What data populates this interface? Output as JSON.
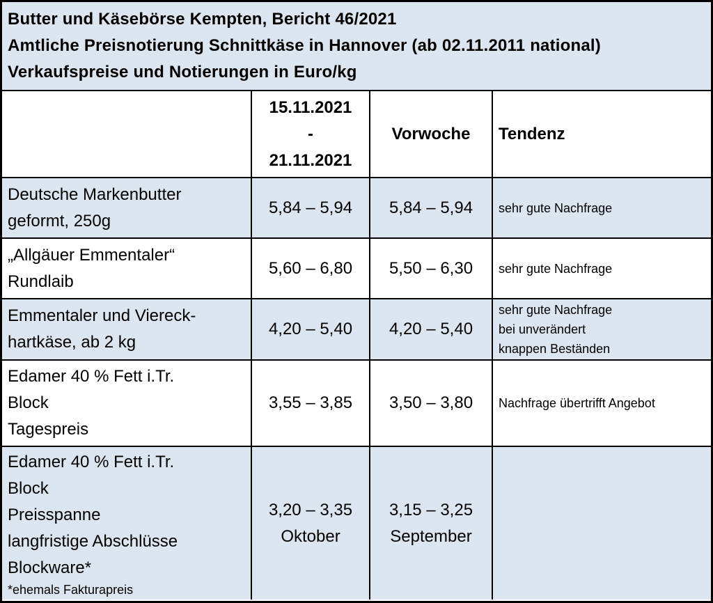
{
  "header": {
    "lines": [
      "Butter und Käsebörse Kempten, Bericht 46/2021",
      "Amtliche Preisnotierung Schnittkäse in Hannover (ab 02.11.2011 national)",
      "Verkaufspreise und Notierungen in Euro/kg"
    ]
  },
  "table": {
    "head": {
      "period": [
        "15.11.2021",
        "-",
        "21.11.2021"
      ],
      "previous": "Vorwoche",
      "trend": "Tendenz"
    },
    "rows": [
      {
        "product": [
          "Deutsche Markenbutter",
          "geformt, 250g"
        ],
        "current": [
          "5,84 – 5,94"
        ],
        "previous": [
          "5,84 – 5,94"
        ],
        "trend": [
          "sehr gute Nachfrage"
        ]
      },
      {
        "product": [
          "„Allgäuer Emmentaler“",
          "Rundlaib"
        ],
        "current": [
          "5,60 – 6,80"
        ],
        "previous": [
          "5,50 – 6,30"
        ],
        "trend": [
          "sehr gute Nachfrage"
        ]
      },
      {
        "product": [
          "Emmentaler und Viereck-",
          "hartkäse, ab 2 kg"
        ],
        "current": [
          "4,20 – 5,40"
        ],
        "previous": [
          "4,20 – 5,40"
        ],
        "trend": [
          "sehr gute Nachfrage",
          "bei unverändert",
          "knappen Beständen"
        ]
      },
      {
        "product": [
          "Edamer 40 % Fett i.Tr.",
          "Block",
          "Tagespreis"
        ],
        "current": [
          "3,55 – 3,85"
        ],
        "previous": [
          "3,50 – 3,80"
        ],
        "trend": [
          "Nachfrage übertrifft Angebot"
        ]
      },
      {
        "product": [
          "Edamer 40 % Fett i.Tr.",
          "Block",
          "Preisspanne",
          "langfristige Abschlüsse",
          "Blockware*"
        ],
        "note": "*ehemals Fakturapreis",
        "current": [
          "3,20 – 3,35",
          "Oktober"
        ],
        "previous": [
          "3,15 – 3,25",
          "September"
        ]
      }
    ]
  }
}
